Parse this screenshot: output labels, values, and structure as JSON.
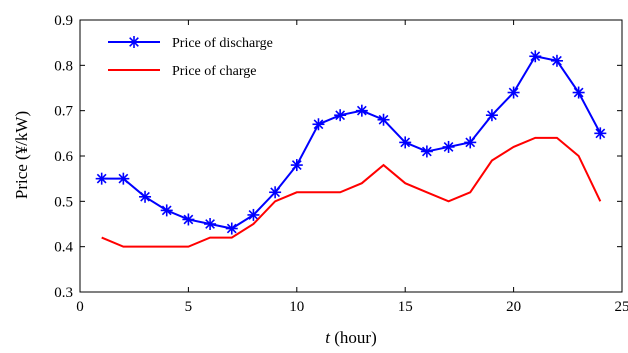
{
  "chart_data": {
    "type": "line",
    "title": "",
    "xlabel_italic": "t",
    "xlabel_rest": " (hour)",
    "ylabel": "Price (¥/kW)",
    "xlim": [
      0,
      25
    ],
    "ylim": [
      0.3,
      0.9
    ],
    "xticks": [
      0,
      5,
      10,
      15,
      20,
      25
    ],
    "yticks": [
      0.3,
      0.4,
      0.5,
      0.6,
      0.7,
      0.8,
      0.9
    ],
    "grid": false,
    "legend_position": "top-left",
    "x": [
      1,
      2,
      3,
      4,
      5,
      6,
      7,
      8,
      9,
      10,
      11,
      12,
      13,
      14,
      15,
      16,
      17,
      18,
      19,
      20,
      21,
      22,
      23,
      24
    ],
    "series": [
      {
        "name": "Price of discharge",
        "color": "#0000ff",
        "marker": "asterisk",
        "values": [
          0.55,
          0.55,
          0.51,
          0.48,
          0.46,
          0.45,
          0.44,
          0.47,
          0.52,
          0.58,
          0.67,
          0.69,
          0.7,
          0.68,
          0.63,
          0.61,
          0.62,
          0.63,
          0.69,
          0.74,
          0.82,
          0.81,
          0.74,
          0.65
        ]
      },
      {
        "name": "Price of charge",
        "color": "#ff0000",
        "marker": "none",
        "values": [
          0.42,
          0.4,
          0.4,
          0.4,
          0.4,
          0.42,
          0.42,
          0.45,
          0.5,
          0.52,
          0.52,
          0.52,
          0.54,
          0.58,
          0.54,
          0.52,
          0.5,
          0.52,
          0.59,
          0.62,
          0.64,
          0.64,
          0.6,
          0.5
        ]
      }
    ]
  }
}
